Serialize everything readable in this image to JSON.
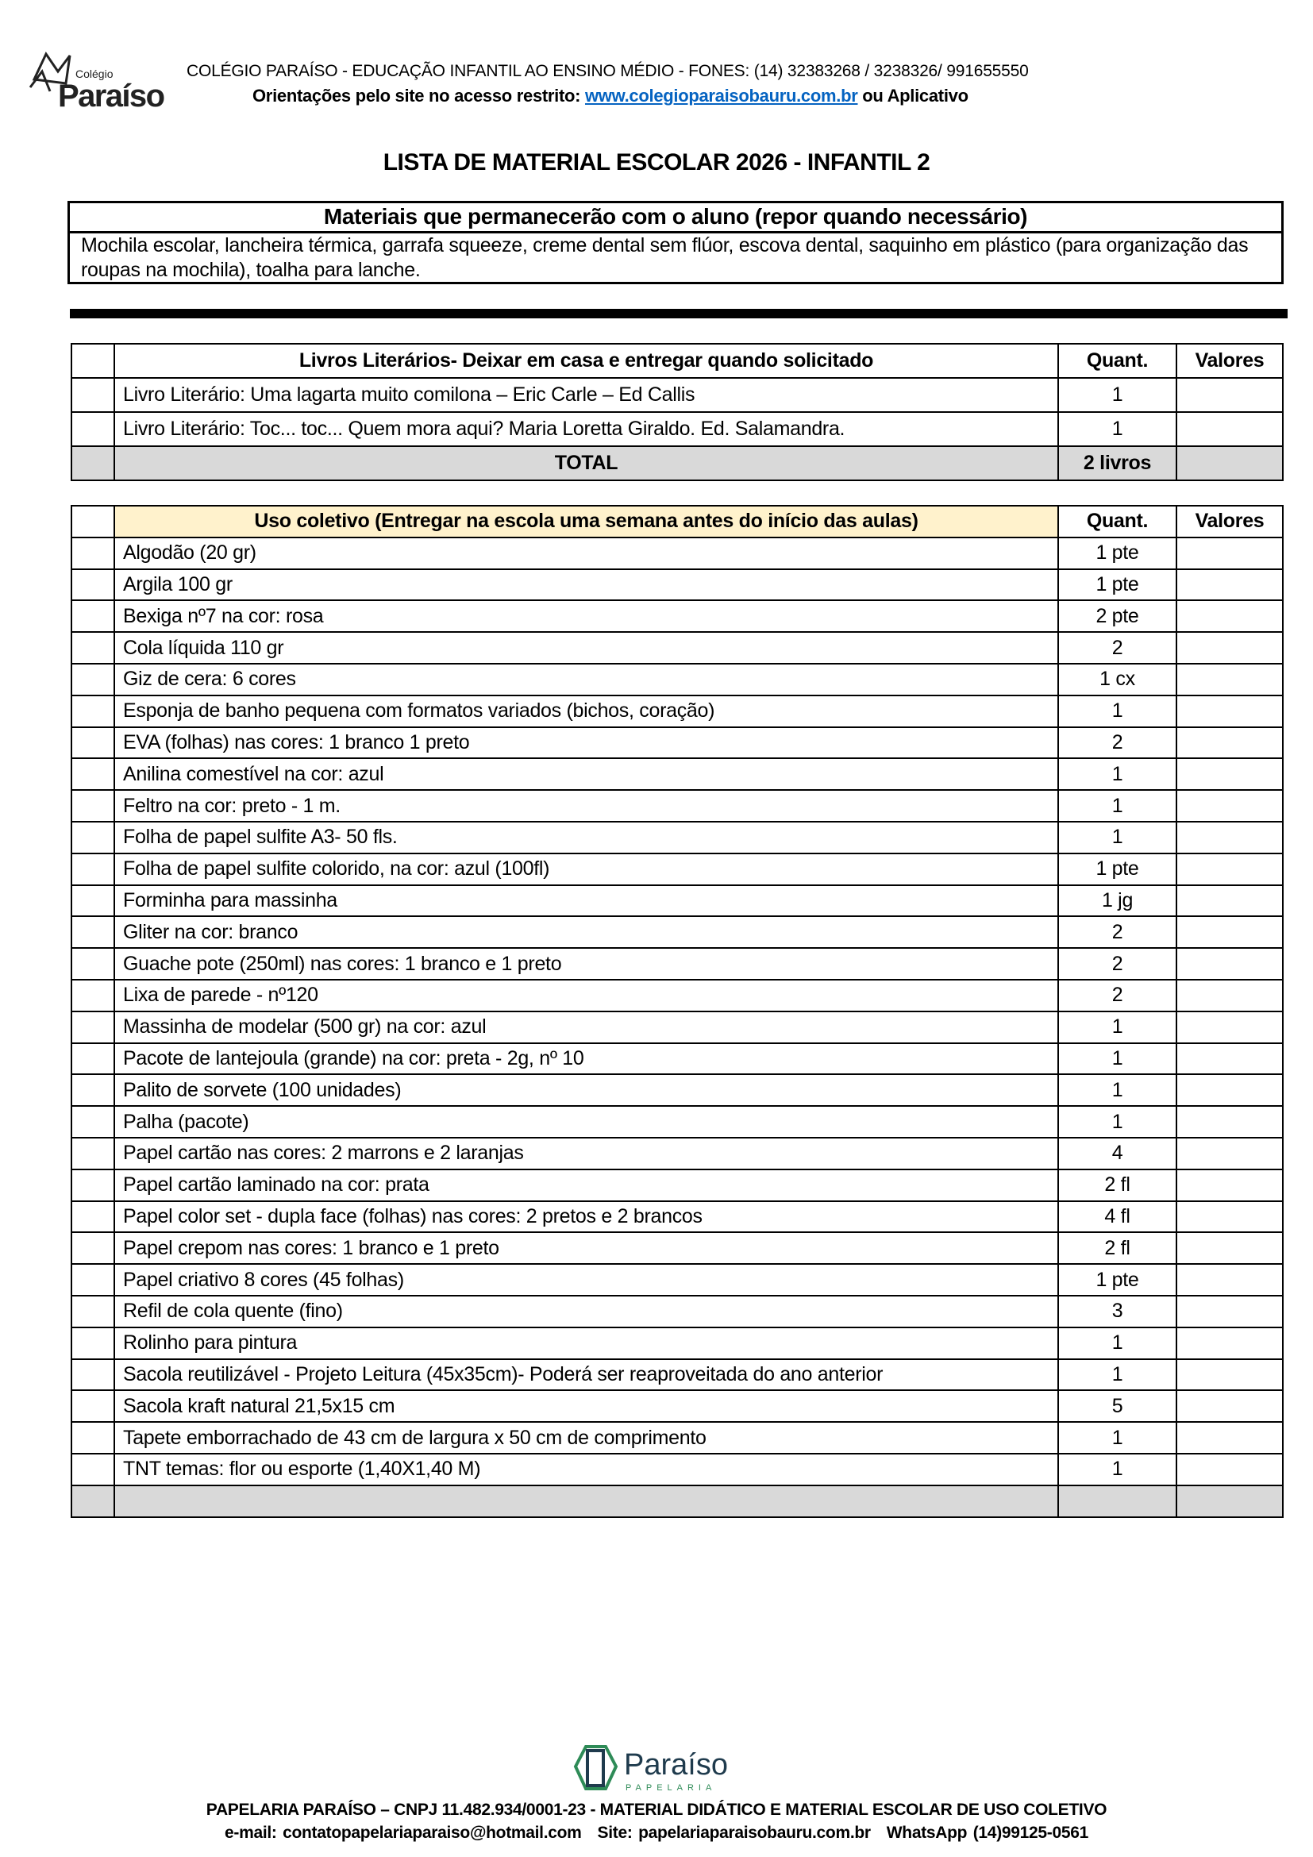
{
  "header": {
    "logo_text_small": "Colégio",
    "logo_text_big": "Paraíso",
    "line1": "COLÉGIO PARAÍSO -  EDUCAÇÃO INFANTIL AO  ENSINO  MÉDIO -  FONES: (14) 32383268 / 3238326/ 991655550",
    "line2_prefix": "Orientações pelo site no acesso restrito: ",
    "line2_link": "www.colegioparaisobauru.com.br",
    "line2_suffix": " ou Aplicativo"
  },
  "title": "LISTA DE MATERIAL ESCOLAR 2026 -  INFANTIL 2",
  "permanent": {
    "heading": "Materiais que permanecerão com o aluno (repor quando necessário)",
    "text": "Mochila escolar,  lancheira térmica, garrafa squeeze, creme dental sem flúor, escova dental, saquinho em plástico (para organização das roupas na mochila), toalha para lanche."
  },
  "books": {
    "heading": "Livros Literários- Deixar em casa e entregar quando solicitado",
    "qty_header": "Quant.",
    "value_header": "Valores",
    "rows": [
      {
        "item": " Livro Literário: Uma lagarta muito comilona – Eric Carle – Ed Callis",
        "qty": "1"
      },
      {
        "item": "Livro Literário: Toc... toc... Quem mora aqui?  Maria Loretta Giraldo. Ed. Salamandra.",
        "qty": "1"
      }
    ],
    "total_label": "TOTAL",
    "total_qty": "2 livros"
  },
  "collective": {
    "heading": "Uso coletivo (Entregar na escola uma semana antes do início das aulas)",
    "qty_header": "Quant.",
    "value_header": "Valores",
    "rows": [
      {
        "item": "Algodão (20 gr)",
        "qty": "1 pte"
      },
      {
        "item": "Argila 100 gr",
        "qty": "1 pte"
      },
      {
        "item": "Bexiga nº7 na cor: rosa",
        "qty": "2 pte"
      },
      {
        "item": "Cola líquida  110 gr",
        "qty": "2"
      },
      {
        "item": "Giz de cera: 6 cores",
        "qty": "1 cx"
      },
      {
        "item": "Esponja de banho pequena com formatos variados (bichos, coração)",
        "qty": "1"
      },
      {
        "item": "EVA (folhas) nas cores: 1  branco  1  preto",
        "qty": "2"
      },
      {
        "item": "Anilina comestível na cor: azul",
        "qty": "1"
      },
      {
        "item": "Feltro na cor: preto - 1 m.",
        "qty": "1"
      },
      {
        "item": "Folha de papel sulfite A3- 50 fls.",
        "qty": "1"
      },
      {
        "item": "Folha de papel sulfite colorido, na cor: azul (100fl)",
        "qty": "1 pte"
      },
      {
        "item": "Forminha para massinha",
        "qty": "1 jg"
      },
      {
        "item": "Gliter na cor: branco",
        "qty": "2"
      },
      {
        "item": "Guache pote (250ml) nas cores: 1  branco e 1  preto",
        "qty": "2"
      },
      {
        "item": "Lixa  de parede - nº120",
        "qty": "2"
      },
      {
        "item": "Massinha de modelar (500 gr) na cor: azul",
        "qty": "1"
      },
      {
        "item": "Pacote de lantejoula (grande) na cor: preta - 2g, nº 10",
        "qty": "1"
      },
      {
        "item": "Palito de sorvete (100 unidades)",
        "qty": "1"
      },
      {
        "item": "Palha (pacote)",
        "qty": "1"
      },
      {
        "item": "Papel cartão nas cores: 2 marrons e 2 laranjas",
        "qty": "4"
      },
      {
        "item": "Papel cartão laminado na cor: prata",
        "qty": "2 fl"
      },
      {
        "item": "Papel color set - dupla face (folhas) nas cores: 2 pretos e 2 brancos",
        "qty": "4 fl"
      },
      {
        "item": "Papel crepom nas cores: 1 branco e 1 preto",
        "qty": "2 fl"
      },
      {
        "item": "Papel criativo  8 cores (45 folhas)",
        "qty": "1 pte"
      },
      {
        "item": "Refil de cola quente (fino)",
        "qty": "3"
      },
      {
        "item": "Rolinho para pintura",
        "qty": "1"
      },
      {
        "item": "Sacola reutilizável - Projeto Leitura (45x35cm)- Poderá ser reaproveitada do ano anterior",
        "qty": "1"
      },
      {
        "item": "Sacola kraft natural 21,5x15 cm",
        "qty": "5"
      },
      {
        "item": "Tapete emborrachado de 43 cm de largura x 50 cm de comprimento",
        "qty": "1"
      },
      {
        "item": "TNT  temas: flor ou esporte (1,40X1,40 M)",
        "qty": "1"
      }
    ]
  },
  "footer": {
    "logo_text": "Paraíso",
    "logo_sub": "PAPELARIA",
    "line1": "PAPELARIA PARAÍSO – CNPJ 11.482.934/0001-23 - MATERIAL DIDÁTICO E MATERIAL ESCOLAR DE USO COLETIVO",
    "email": "e-mail: contatopapelariaparaiso@hotmail.com",
    "site": "Site: papelariaparaisobauru.com.br",
    "whatsapp": "WhatsApp (14)99125-0561"
  },
  "colors": {
    "link": "#0563C1",
    "header_yellow": "#FFF2CC",
    "total_gray": "#D9D9D9",
    "footer_logo_green": "#2E8B57"
  }
}
